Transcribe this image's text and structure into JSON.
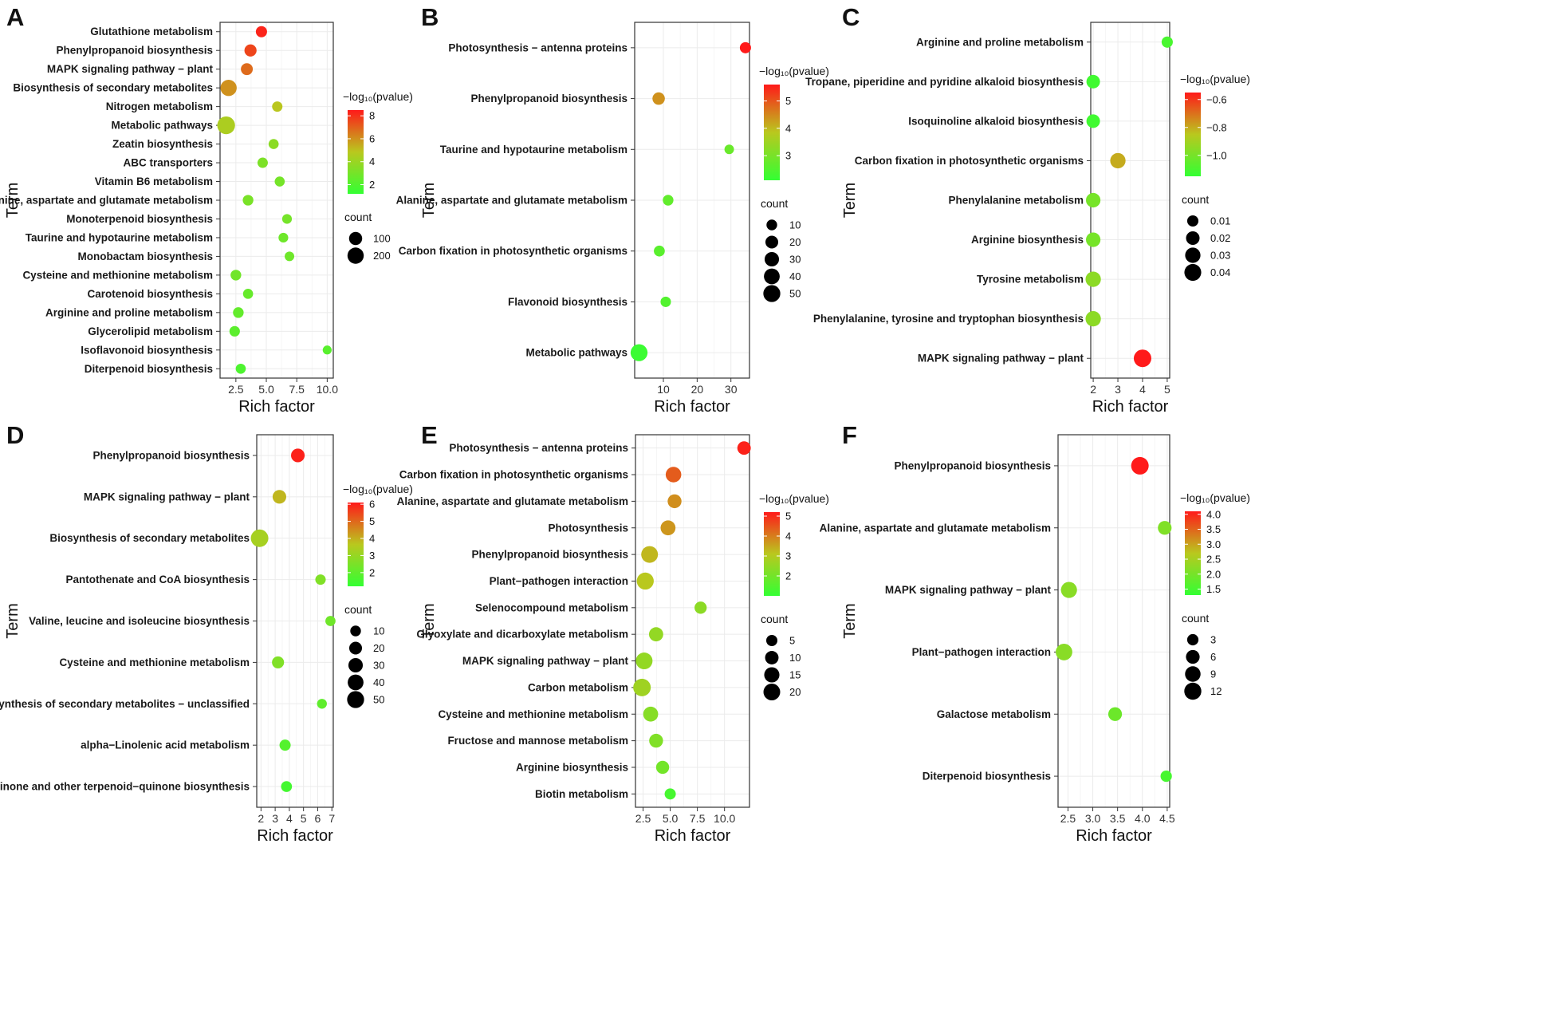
{
  "figure": {
    "xlabel": "Rich factor",
    "ylabel": "Term",
    "color_title": "−log₁₀(pvalue)",
    "size_title": "count",
    "color_low": "#33ff33",
    "color_mid": "#b9c81e",
    "color_high": "#ff1a1a"
  },
  "chart_data": [
    {
      "panel": "A",
      "type": "scatter",
      "xlabel": "Rich factor",
      "ylabel": "Term",
      "xlim": [
        1.2,
        10.5
      ],
      "xticks": [
        2.5,
        5.0,
        7.5,
        10.0
      ],
      "xtick_labels": [
        "2.5",
        "5.0",
        "7.5",
        "10.0"
      ],
      "color_range": [
        1.2,
        8.5
      ],
      "color_ticks": [
        8,
        6,
        4,
        2
      ],
      "size_ticks": [
        100,
        200
      ],
      "size_max": 250,
      "points": [
        {
          "term": "Glutathione metabolism",
          "x": 4.6,
          "p": 8.3,
          "count": 55
        },
        {
          "term": "Phenylpropanoid biosynthesis",
          "x": 3.7,
          "p": 7.6,
          "count": 75
        },
        {
          "term": "MAPK signaling pathway − plant",
          "x": 3.4,
          "p": 6.8,
          "count": 70
        },
        {
          "term": "Biosynthesis of secondary metabolites",
          "x": 1.9,
          "p": 6.0,
          "count": 200
        },
        {
          "term": "Nitrogen metabolism",
          "x": 5.9,
          "p": 4.9,
          "count": 40
        },
        {
          "term": "Metabolic pathways",
          "x": 1.7,
          "p": 4.5,
          "count": 260
        },
        {
          "term": "Zeatin biosynthesis",
          "x": 5.6,
          "p": 3.6,
          "count": 35
        },
        {
          "term": "ABC transporters",
          "x": 4.7,
          "p": 3.2,
          "count": 40
        },
        {
          "term": "Vitamin B6 metabolism",
          "x": 6.1,
          "p": 3.0,
          "count": 35
        },
        {
          "term": "Alanine, aspartate and glutamate metabolism",
          "x": 3.5,
          "p": 3.1,
          "count": 45
        },
        {
          "term": "Monoterpenoid biosynthesis",
          "x": 6.7,
          "p": 3.0,
          "count": 30
        },
        {
          "term": "Taurine and hypotaurine metabolism",
          "x": 6.4,
          "p": 2.8,
          "count": 30
        },
        {
          "term": "Monobactam biosynthesis",
          "x": 6.9,
          "p": 2.8,
          "count": 28
        },
        {
          "term": "Cysteine and methionine metabolism",
          "x": 2.5,
          "p": 2.9,
          "count": 45
        },
        {
          "term": "Carotenoid biosynthesis",
          "x": 3.5,
          "p": 2.6,
          "count": 35
        },
        {
          "term": "Arginine and proline metabolism",
          "x": 2.7,
          "p": 2.5,
          "count": 45
        },
        {
          "term": "Glycerolipid metabolism",
          "x": 2.4,
          "p": 2.3,
          "count": 42
        },
        {
          "term": "Isoflavonoid biosynthesis",
          "x": 10.0,
          "p": 2.2,
          "count": 20
        },
        {
          "term": "Diterpenoid biosynthesis",
          "x": 2.9,
          "p": 1.9,
          "count": 35
        }
      ]
    },
    {
      "panel": "B",
      "type": "scatter",
      "xlabel": "Rich factor",
      "ylabel": "Term",
      "xlim": [
        1.5,
        35.5
      ],
      "xticks": [
        10,
        20,
        30
      ],
      "xtick_labels": [
        "10",
        "20",
        "30"
      ],
      "color_range": [
        2.1,
        5.6
      ],
      "color_ticks": [
        5,
        4,
        3
      ],
      "size_ticks": [
        10,
        20,
        30,
        40,
        50
      ],
      "size_max": 55,
      "points": [
        {
          "term": "Photosynthesis − antenna proteins",
          "x": 34.3,
          "p": 5.6,
          "count": 12
        },
        {
          "term": "Phenylpropanoid biosynthesis",
          "x": 8.6,
          "p": 4.4,
          "count": 18
        },
        {
          "term": "Taurine and hypotaurine metabolism",
          "x": 29.5,
          "p": 2.8,
          "count": 6
        },
        {
          "term": "Alanine, aspartate and glutamate metabolism",
          "x": 11.4,
          "p": 2.7,
          "count": 10
        },
        {
          "term": "Carbon fixation in photosynthetic organisms",
          "x": 8.8,
          "p": 2.6,
          "count": 11
        },
        {
          "term": "Flavonoid biosynthesis",
          "x": 10.7,
          "p": 2.5,
          "count": 9
        },
        {
          "term": "Metabolic pathways",
          "x": 2.8,
          "p": 2.2,
          "count": 50
        }
      ]
    },
    {
      "panel": "C",
      "type": "scatter",
      "xlabel": "Rich factor",
      "ylabel": "Term",
      "xlim": [
        1.9,
        5.1
      ],
      "xticks": [
        2,
        3,
        4,
        5
      ],
      "xtick_labels": [
        "2",
        "3",
        "4",
        "5"
      ],
      "color_range": [
        -1.15,
        -0.55
      ],
      "color_ticks": [
        -0.6,
        -0.8,
        -1.0
      ],
      "color_tick_labels": [
        "−0.6",
        "−0.8",
        "−1.0"
      ],
      "size_ticks": [
        0.01,
        0.02,
        0.03,
        0.04
      ],
      "size_tick_labels": [
        "0.01",
        "0.02",
        "0.03",
        "0.04"
      ],
      "size_max": 0.045,
      "points": [
        {
          "term": "Arginine and proline metabolism",
          "x": 5.0,
          "p": -1.1,
          "count": 0.01
        },
        {
          "term": "Tropane, piperidine and pyridine alkaloid biosynthesis",
          "x": 2.0,
          "p": -1.12,
          "count": 0.02
        },
        {
          "term": "Isoquinoline alkaloid biosynthesis",
          "x": 2.0,
          "p": -1.12,
          "count": 0.02
        },
        {
          "term": "Carbon fixation in photosynthetic organisms",
          "x": 3.0,
          "p": -0.8,
          "count": 0.03
        },
        {
          "term": "Phenylalanine metabolism",
          "x": 2.0,
          "p": -1.0,
          "count": 0.025
        },
        {
          "term": "Arginine biosynthesis",
          "x": 2.0,
          "p": -1.0,
          "count": 0.025
        },
        {
          "term": "Tyrosine metabolism",
          "x": 2.0,
          "p": -0.95,
          "count": 0.03
        },
        {
          "term": "Phenylalanine, tyrosine and tryptophan biosynthesis",
          "x": 2.0,
          "p": -0.95,
          "count": 0.03
        },
        {
          "term": "MAPK signaling pathway − plant",
          "x": 4.0,
          "p": -0.55,
          "count": 0.045
        }
      ]
    },
    {
      "panel": "D",
      "type": "scatter",
      "xlabel": "Rich factor",
      "ylabel": "Term",
      "xlim": [
        1.7,
        7.1
      ],
      "xticks": [
        2,
        3,
        4,
        5,
        6,
        7
      ],
      "xtick_labels": [
        "2",
        "3",
        "4",
        "5",
        "6",
        "7"
      ],
      "color_range": [
        1.2,
        6.1
      ],
      "color_ticks": [
        6,
        5,
        4,
        3,
        2
      ],
      "size_ticks": [
        10,
        20,
        30,
        40,
        50
      ],
      "size_max": 55,
      "points": [
        {
          "term": "Phenylpropanoid biosynthesis",
          "x": 4.6,
          "p": 6.0,
          "count": 25
        },
        {
          "term": "MAPK signaling pathway − plant",
          "x": 3.3,
          "p": 3.9,
          "count": 25
        },
        {
          "term": "Biosynthesis of secondary metabolites",
          "x": 1.9,
          "p": 3.3,
          "count": 55
        },
        {
          "term": "Pantothenate and CoA biosynthesis",
          "x": 6.2,
          "p": 2.6,
          "count": 9
        },
        {
          "term": "Valine, leucine and isoleucine biosynthesis",
          "x": 6.9,
          "p": 2.3,
          "count": 8
        },
        {
          "term": "Cysteine and methionine metabolism",
          "x": 3.2,
          "p": 2.6,
          "count": 16
        },
        {
          "term": "Biosynthesis of secondary metabolites − unclassified",
          "x": 6.3,
          "p": 2.0,
          "count": 7
        },
        {
          "term": "alpha−Linolenic acid metabolism",
          "x": 3.7,
          "p": 1.8,
          "count": 12
        },
        {
          "term": "Ubiquinone and other terpenoid−quinone biosynthesis",
          "x": 3.8,
          "p": 1.5,
          "count": 11
        }
      ]
    },
    {
      "panel": "E",
      "type": "scatter",
      "xlabel": "Rich factor",
      "ylabel": "Term",
      "xlim": [
        1.8,
        12.3
      ],
      "xticks": [
        2.5,
        5.0,
        7.5,
        10.0
      ],
      "xtick_labels": [
        "2.5",
        "5.0",
        "7.5",
        "10.0"
      ],
      "color_range": [
        1.0,
        5.2
      ],
      "color_ticks": [
        5,
        4,
        3,
        2
      ],
      "size_ticks": [
        5,
        10,
        15,
        20
      ],
      "size_max": 23,
      "points": [
        {
          "term": "Photosynthesis − antenna proteins",
          "x": 11.8,
          "p": 5.1,
          "count": 10
        },
        {
          "term": "Carbon fixation in photosynthetic organisms",
          "x": 5.3,
          "p": 4.4,
          "count": 16
        },
        {
          "term": "Alanine, aspartate and glutamate metabolism",
          "x": 5.4,
          "p": 3.8,
          "count": 11
        },
        {
          "term": "Photosynthesis",
          "x": 4.8,
          "p": 3.7,
          "count": 14
        },
        {
          "term": "Phenylpropanoid biosynthesis",
          "x": 3.1,
          "p": 3.3,
          "count": 20
        },
        {
          "term": "Plant−pathogen interaction",
          "x": 2.7,
          "p": 3.1,
          "count": 21
        },
        {
          "term": "Selenocompound metabolism",
          "x": 7.8,
          "p": 2.4,
          "count": 7
        },
        {
          "term": "Glyoxylate and dicarboxylate metabolism",
          "x": 3.7,
          "p": 2.5,
          "count": 12
        },
        {
          "term": "MAPK signaling pathway − plant",
          "x": 2.6,
          "p": 2.5,
          "count": 20
        },
        {
          "term": "Carbon metabolism",
          "x": 2.4,
          "p": 2.7,
          "count": 23
        },
        {
          "term": "Cysteine and methionine metabolism",
          "x": 3.2,
          "p": 2.3,
          "count": 14
        },
        {
          "term": "Fructose and mannose metabolism",
          "x": 3.7,
          "p": 2.2,
          "count": 11
        },
        {
          "term": "Arginine biosynthesis",
          "x": 4.3,
          "p": 2.0,
          "count": 9
        },
        {
          "term": "Biotin metabolism",
          "x": 5.0,
          "p": 1.3,
          "count": 5
        }
      ]
    },
    {
      "panel": "F",
      "type": "scatter",
      "xlabel": "Rich factor",
      "ylabel": "Term",
      "xlim": [
        2.3,
        4.55
      ],
      "xticks": [
        2.5,
        3.0,
        3.5,
        4.0,
        4.5
      ],
      "xtick_labels": [
        "2.5",
        "3.0",
        "3.5",
        "4.0",
        "4.5"
      ],
      "color_range": [
        1.3,
        4.1
      ],
      "color_ticks": [
        4.0,
        3.5,
        3.0,
        2.5,
        2.0,
        1.5
      ],
      "color_tick_labels": [
        "4.0",
        "3.5",
        "3.0",
        "2.5",
        "2.0",
        "1.5"
      ],
      "size_ticks": [
        3,
        6,
        9,
        12
      ],
      "size_max": 13,
      "points": [
        {
          "term": "Phenylpropanoid biosynthesis",
          "x": 3.95,
          "p": 4.1,
          "count": 13
        },
        {
          "term": "Alanine, aspartate and glutamate metabolism",
          "x": 4.45,
          "p": 2.1,
          "count": 6
        },
        {
          "term": "MAPK signaling pathway − plant",
          "x": 2.52,
          "p": 2.2,
          "count": 10
        },
        {
          "term": "Plant−pathogen interaction",
          "x": 2.42,
          "p": 2.2,
          "count": 11
        },
        {
          "term": "Galactose metabolism",
          "x": 3.45,
          "p": 1.9,
          "count": 6
        },
        {
          "term": "Diterpenoid biosynthesis",
          "x": 4.48,
          "p": 1.5,
          "count": 3
        }
      ]
    }
  ]
}
